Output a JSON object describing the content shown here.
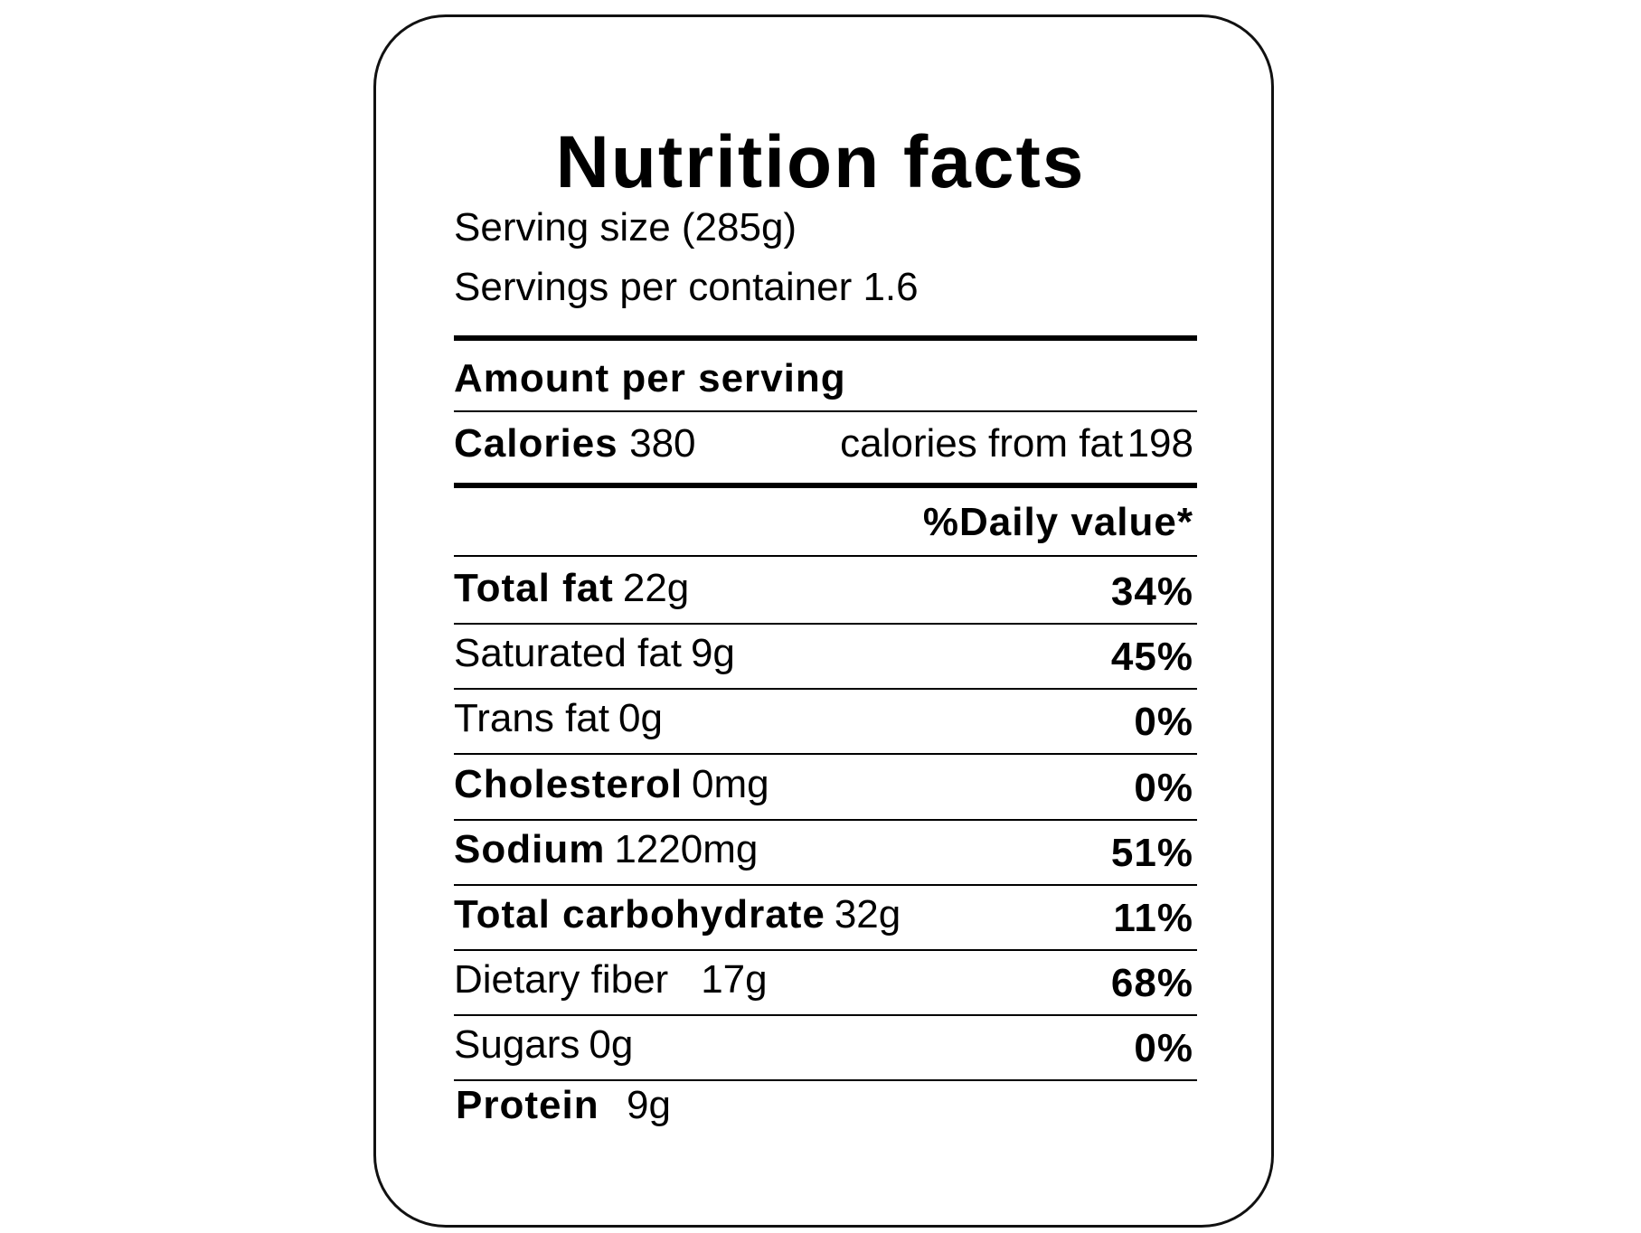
{
  "title": "Nutrition facts",
  "serving_size": "Serving size (285g)",
  "servings_per_container": "Servings per container 1.6",
  "amount_per_serving": "Amount per serving",
  "calories": {
    "label": "Calories",
    "value": "380",
    "fat_label": "calories from fat",
    "fat_value": "198"
  },
  "daily_value_header": "%Daily value*",
  "rows": [
    {
      "name": "Total fat",
      "amount": "22g",
      "percent": "34%"
    },
    {
      "name": "Saturated fat",
      "amount": "9g",
      "percent": "45%"
    },
    {
      "name": "Trans fat",
      "amount": "0g",
      "percent": "0%"
    },
    {
      "name": "Cholesterol",
      "amount": "0mg",
      "percent": "0%"
    },
    {
      "name": "Sodium",
      "amount": "1220mg",
      "percent": "51%"
    },
    {
      "name": "Total carbohydrate",
      "amount": "32g",
      "percent": "11%"
    },
    {
      "name": "Dietary fiber",
      "amount": "17g",
      "percent": "68%"
    },
    {
      "name": "Sugars",
      "amount": "0g",
      "percent": "0%"
    }
  ],
  "protein": {
    "name": "Protein",
    "amount": "9g"
  }
}
